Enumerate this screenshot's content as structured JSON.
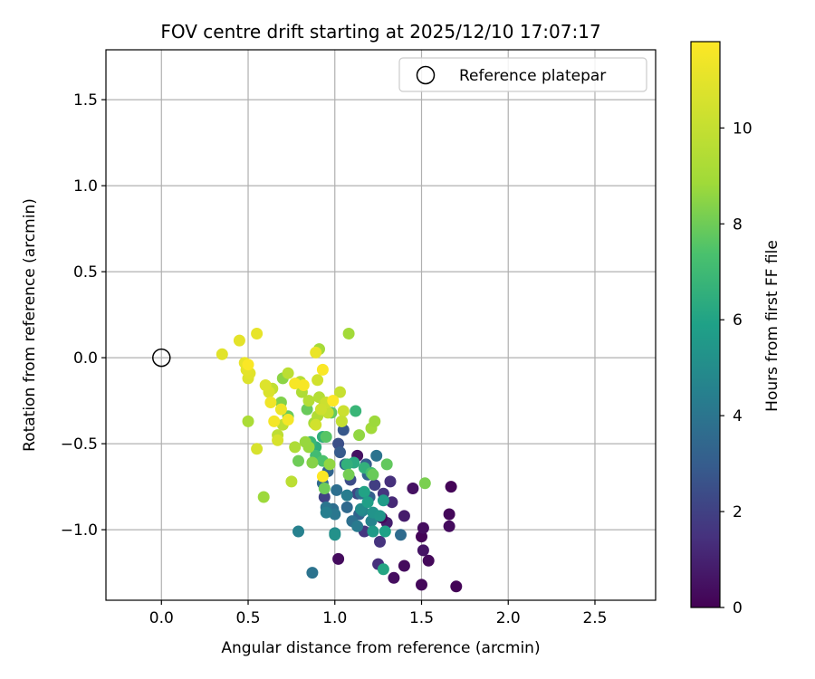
{
  "chart_data": {
    "type": "scatter",
    "title": "FOV centre drift starting at 2025/12/10 17:07:17",
    "xlabel": "Angular distance from reference (arcmin)",
    "ylabel": "Rotation from reference (arcmin)",
    "xlim": [
      -0.32,
      2.85
    ],
    "ylim": [
      -1.41,
      1.79
    ],
    "xticks": [
      0.0,
      0.5,
      1.0,
      1.5,
      2.0,
      2.5
    ],
    "xtick_labels": [
      "0.0",
      "0.5",
      "1.0",
      "1.5",
      "2.0",
      "2.5"
    ],
    "yticks": [
      1.5,
      1.0,
      0.5,
      0.0,
      -0.5,
      -1.0
    ],
    "ytick_labels": [
      "1.5",
      "1.0",
      "0.5",
      "0.0",
      "−0.5",
      "−1.0"
    ],
    "grid": true,
    "legend": {
      "position": "upper-right",
      "entries": [
        {
          "label": "Reference platepar",
          "marker": "open-circle",
          "x": 0.0,
          "y": 0.0
        }
      ]
    },
    "colorbar": {
      "label": "Hours from first FF file",
      "colormap": "viridis",
      "range": [
        0,
        11.8
      ],
      "ticks": [
        0,
        2,
        4,
        6,
        8,
        10
      ],
      "tick_labels": [
        "0",
        "2",
        "4",
        "6",
        "8",
        "10"
      ]
    },
    "points_columns": [
      "x",
      "y",
      "hours"
    ],
    "points": [
      [
        1.7,
        -1.33,
        0.1
      ],
      [
        1.5,
        -1.32,
        0.2
      ],
      [
        1.34,
        -1.28,
        0.4
      ],
      [
        1.4,
        -1.21,
        0.3
      ],
      [
        1.54,
        -1.18,
        0.2
      ],
      [
        1.51,
        -1.12,
        0.6
      ],
      [
        1.25,
        -1.2,
        1.4
      ],
      [
        1.02,
        -1.17,
        0.3
      ],
      [
        1.5,
        -1.04,
        0.1
      ],
      [
        1.66,
        -0.98,
        0.3
      ],
      [
        1.51,
        -0.99,
        0.4
      ],
      [
        1.66,
        -0.91,
        0.2
      ],
      [
        1.67,
        -0.75,
        0.1
      ],
      [
        1.45,
        -0.76,
        0.5
      ],
      [
        1.4,
        -0.92,
        0.8
      ],
      [
        1.33,
        -0.84,
        1.2
      ],
      [
        1.32,
        -0.72,
        1.4
      ],
      [
        1.3,
        -0.96,
        0.9
      ],
      [
        1.28,
        -0.79,
        1.6
      ],
      [
        1.26,
        -1.07,
        1.5
      ],
      [
        1.23,
        -0.92,
        0.6
      ],
      [
        1.13,
        -0.57,
        0.5
      ],
      [
        1.27,
        -0.93,
        0.2
      ],
      [
        1.38,
        -1.03,
        3.6
      ],
      [
        1.17,
        -1.01,
        1.6
      ],
      [
        1.23,
        -0.74,
        1.9
      ],
      [
        1.13,
        -0.79,
        2.2
      ],
      [
        1.09,
        -0.71,
        2.4
      ],
      [
        1.02,
        -0.5,
        2.5
      ],
      [
        1.05,
        -0.42,
        2.8
      ],
      [
        1.03,
        -0.55,
        2.9
      ],
      [
        1.06,
        -0.62,
        3.1
      ],
      [
        0.94,
        -0.81,
        2.0
      ],
      [
        0.96,
        -0.66,
        3.3
      ],
      [
        0.93,
        -0.73,
        3.5
      ],
      [
        1.18,
        -0.62,
        3.0
      ],
      [
        1.24,
        -0.57,
        3.9
      ],
      [
        1.2,
        -0.81,
        3.1
      ],
      [
        1.19,
        -0.68,
        3.3
      ],
      [
        1.15,
        -0.79,
        3.7
      ],
      [
        1.14,
        -0.91,
        3.2
      ],
      [
        1.1,
        -0.95,
        3.8
      ],
      [
        1.07,
        -0.87,
        3.5
      ],
      [
        1.13,
        -0.98,
        4.2
      ],
      [
        0.99,
        -0.88,
        3.7
      ],
      [
        0.95,
        -0.87,
        4.0
      ],
      [
        1.0,
        -0.91,
        4.1
      ],
      [
        1.01,
        -0.77,
        3.7
      ],
      [
        0.95,
        -0.9,
        4.4
      ],
      [
        0.87,
        -1.25,
        3.9
      ],
      [
        0.79,
        -1.01,
        4.5
      ],
      [
        1.0,
        -1.02,
        4.9
      ],
      [
        1.21,
        -0.95,
        4.7
      ],
      [
        1.16,
        -0.89,
        4.6
      ],
      [
        1.15,
        -0.88,
        5.0
      ],
      [
        1.22,
        -0.9,
        5.3
      ],
      [
        1.22,
        -1.01,
        5.6
      ],
      [
        1.26,
        -0.92,
        5.4
      ],
      [
        1.28,
        -0.83,
        5.7
      ],
      [
        1.29,
        -1.01,
        5.9
      ],
      [
        1.28,
        -1.23,
        6.1
      ],
      [
        1.17,
        -0.78,
        6.0
      ],
      [
        1.19,
        -0.84,
        5.8
      ],
      [
        1.11,
        -0.61,
        6.3
      ],
      [
        1.17,
        -0.64,
        6.6
      ],
      [
        1.07,
        -0.8,
        4.3
      ],
      [
        1.0,
        -1.03,
        5.2
      ],
      [
        1.07,
        -0.62,
        6.6
      ],
      [
        1.12,
        -0.31,
        6.8
      ],
      [
        0.93,
        -0.46,
        6.5
      ],
      [
        0.89,
        -0.52,
        6.4
      ],
      [
        0.86,
        -0.49,
        6.8
      ],
      [
        0.89,
        -0.57,
        7.1
      ],
      [
        0.93,
        -0.6,
        7.4
      ],
      [
        0.95,
        -0.46,
        7.6
      ],
      [
        1.21,
        -0.67,
        7.2
      ],
      [
        1.3,
        -0.62,
        7.8
      ],
      [
        1.22,
        -0.68,
        7.9
      ],
      [
        1.08,
        -0.68,
        8.1
      ],
      [
        1.52,
        -0.73,
        8.2
      ],
      [
        0.94,
        -0.76,
        8.0
      ],
      [
        0.79,
        -0.6,
        8.0
      ],
      [
        0.73,
        -0.34,
        7.9
      ],
      [
        0.84,
        -0.3,
        7.9
      ],
      [
        0.98,
        -0.32,
        7.8
      ],
      [
        1.04,
        -0.37,
        8.2
      ],
      [
        0.69,
        -0.26,
        8.3
      ],
      [
        0.7,
        -0.12,
        8.5
      ],
      [
        0.97,
        -0.62,
        8.6
      ],
      [
        0.87,
        -0.61,
        8.4
      ],
      [
        0.85,
        -0.52,
        8.7
      ],
      [
        0.83,
        -0.49,
        8.7
      ],
      [
        0.59,
        -0.81,
        8.8
      ],
      [
        1.21,
        -0.41,
        8.9
      ],
      [
        1.23,
        -0.37,
        8.8
      ],
      [
        1.14,
        -0.45,
        8.6
      ],
      [
        1.08,
        0.14,
        8.9
      ],
      [
        0.91,
        0.05,
        9.0
      ],
      [
        0.5,
        -0.37,
        9.2
      ],
      [
        0.77,
        -0.52,
        9.3
      ],
      [
        0.88,
        -0.38,
        9.1
      ],
      [
        0.9,
        -0.34,
        9.4
      ],
      [
        0.91,
        -0.23,
        9.5
      ],
      [
        0.85,
        -0.25,
        9.5
      ],
      [
        0.81,
        -0.2,
        9.3
      ],
      [
        0.8,
        -0.14,
        9.6
      ],
      [
        0.73,
        -0.09,
        9.7
      ],
      [
        0.75,
        -0.72,
        9.7
      ],
      [
        0.67,
        -0.45,
        9.8
      ],
      [
        0.7,
        -0.39,
        9.8
      ],
      [
        0.64,
        -0.18,
        9.9
      ],
      [
        0.94,
        -0.27,
        9.9
      ],
      [
        0.96,
        -0.32,
        10.0
      ],
      [
        1.03,
        -0.2,
        10.1
      ],
      [
        1.05,
        -0.31,
        10.2
      ],
      [
        1.04,
        -0.37,
        10.0
      ],
      [
        0.95,
        -0.26,
        10.2
      ],
      [
        0.92,
        -0.3,
        10.3
      ],
      [
        0.9,
        -0.13,
        10.4
      ],
      [
        0.89,
        -0.39,
        10.4
      ],
      [
        0.55,
        -0.53,
        10.6
      ],
      [
        0.67,
        -0.48,
        10.6
      ],
      [
        0.62,
        -0.2,
        10.7
      ],
      [
        0.6,
        -0.16,
        10.8
      ],
      [
        0.5,
        -0.12,
        10.8
      ],
      [
        0.51,
        -0.09,
        10.9
      ],
      [
        0.49,
        -0.07,
        11.0
      ],
      [
        0.48,
        -0.03,
        11.1
      ],
      [
        0.45,
        0.1,
        11.0
      ],
      [
        0.55,
        0.14,
        11.1
      ],
      [
        0.35,
        0.02,
        10.9
      ],
      [
        0.89,
        0.03,
        11.2
      ],
      [
        0.69,
        -0.3,
        11.3
      ],
      [
        0.63,
        -0.26,
        11.4
      ],
      [
        0.65,
        -0.37,
        11.5
      ],
      [
        0.73,
        -0.36,
        11.5
      ],
      [
        0.77,
        -0.15,
        11.6
      ],
      [
        0.82,
        -0.16,
        11.6
      ],
      [
        0.93,
        -0.07,
        11.7
      ],
      [
        0.5,
        -0.04,
        11.7
      ],
      [
        0.99,
        -0.25,
        11.8
      ],
      [
        0.93,
        -0.69,
        11.8
      ]
    ]
  }
}
